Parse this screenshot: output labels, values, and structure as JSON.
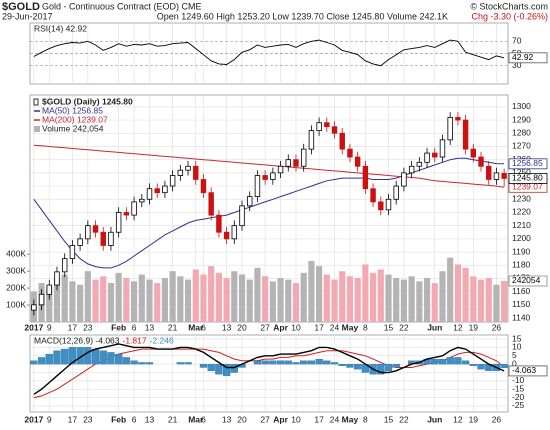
{
  "header": {
    "symbol": "$GOLD",
    "name": "Gold - Continuous Contract (EOD) CME",
    "copyright": "© StockCharts.com",
    "date": "29-Jun-2017",
    "quote": "Open 1249.60 High 1253.20 Low 1239.70 Close 1245.80 Volume 242.1K",
    "change": "Chg -3.30 (-0.26%)"
  },
  "chart_data": [
    {
      "type": "line",
      "label": "RSI(14) 42.92",
      "last_label": "42.92",
      "color": "#000000",
      "ylim": [
        0,
        100
      ],
      "yticks": [
        70,
        50,
        30
      ],
      "values": [
        45,
        52,
        58,
        63,
        66,
        68,
        67,
        70,
        64,
        55,
        60,
        66,
        62,
        65,
        64,
        66,
        62,
        63,
        66,
        67,
        68,
        58,
        48,
        38,
        33,
        32,
        40,
        52,
        56,
        64,
        60,
        62,
        64,
        65,
        60,
        66,
        70,
        72,
        68,
        64,
        55,
        52,
        48,
        38,
        33,
        30,
        40,
        48,
        56,
        58,
        60,
        63,
        60,
        66,
        72,
        70,
        52,
        48,
        44,
        40,
        46,
        42.92
      ]
    },
    {
      "type": "candlestick",
      "legend": "$GOLD (Daily) 1245.80",
      "close_label": "1245.80",
      "up_color": "#000000",
      "down_color": "#cc1111",
      "ylim": [
        1137,
        1309
      ],
      "yticks": [
        1140,
        1150,
        1160,
        1170,
        1180,
        1190,
        1200,
        1210,
        1220,
        1230,
        1240,
        1250,
        1260,
        1270,
        1280,
        1290,
        1300
      ],
      "categories": [
        "2017",
        null,
        "9",
        null,
        null,
        "17",
        null,
        "23",
        null,
        null,
        null,
        "Feb",
        null,
        "6",
        null,
        "13",
        null,
        null,
        "21",
        null,
        null,
        "Mar",
        "6",
        null,
        null,
        "13",
        null,
        "20",
        null,
        null,
        "27",
        null,
        "Apr",
        null,
        "10",
        null,
        null,
        "17",
        null,
        "24",
        null,
        "May",
        null,
        "8",
        null,
        null,
        "15",
        null,
        "22",
        null,
        null,
        null,
        "Jun",
        null,
        null,
        "12",
        null,
        "19",
        null,
        null,
        "26",
        null
      ],
      "open": [
        1146,
        1150,
        1158,
        1165,
        1175,
        1185,
        1195,
        1200,
        1210,
        1205,
        1195,
        1205,
        1220,
        1218,
        1228,
        1230,
        1238,
        1235,
        1240,
        1248,
        1252,
        1255,
        1245,
        1235,
        1218,
        1205,
        1200,
        1210,
        1225,
        1232,
        1248,
        1245,
        1250,
        1255,
        1260,
        1255,
        1268,
        1282,
        1288,
        1285,
        1280,
        1268,
        1262,
        1255,
        1238,
        1228,
        1222,
        1230,
        1240,
        1250,
        1255,
        1258,
        1265,
        1262,
        1275,
        1292,
        1290,
        1268,
        1262,
        1255,
        1245,
        1249.6
      ],
      "high": [
        1154,
        1162,
        1169,
        1179,
        1189,
        1199,
        1204,
        1214,
        1214,
        1209,
        1209,
        1224,
        1224,
        1232,
        1234,
        1242,
        1242,
        1244,
        1252,
        1256,
        1259,
        1259,
        1249,
        1239,
        1222,
        1209,
        1214,
        1229,
        1236,
        1252,
        1252,
        1254,
        1259,
        1264,
        1264,
        1272,
        1286,
        1292,
        1292,
        1289,
        1284,
        1272,
        1266,
        1259,
        1242,
        1232,
        1234,
        1244,
        1254,
        1259,
        1262,
        1269,
        1269,
        1279,
        1296,
        1296,
        1294,
        1272,
        1266,
        1259,
        1254,
        1253.2
      ],
      "low": [
        1142,
        1146,
        1154,
        1161,
        1171,
        1181,
        1191,
        1196,
        1201,
        1191,
        1191,
        1201,
        1214,
        1214,
        1224,
        1226,
        1231,
        1231,
        1236,
        1244,
        1248,
        1241,
        1231,
        1214,
        1201,
        1196,
        1196,
        1206,
        1221,
        1228,
        1241,
        1241,
        1246,
        1251,
        1251,
        1251,
        1264,
        1278,
        1281,
        1276,
        1264,
        1258,
        1251,
        1234,
        1224,
        1218,
        1218,
        1226,
        1236,
        1246,
        1251,
        1254,
        1258,
        1258,
        1271,
        1286,
        1264,
        1258,
        1251,
        1241,
        1241,
        1239.7
      ],
      "close": [
        1150,
        1158,
        1165,
        1175,
        1185,
        1195,
        1200,
        1210,
        1205,
        1195,
        1205,
        1220,
        1218,
        1228,
        1230,
        1238,
        1235,
        1240,
        1248,
        1252,
        1255,
        1245,
        1235,
        1218,
        1205,
        1200,
        1210,
        1225,
        1232,
        1248,
        1245,
        1250,
        1255,
        1260,
        1255,
        1268,
        1282,
        1288,
        1285,
        1280,
        1268,
        1262,
        1255,
        1238,
        1228,
        1222,
        1230,
        1240,
        1250,
        1255,
        1258,
        1265,
        1262,
        1275,
        1292,
        1290,
        1268,
        1262,
        1255,
        1245,
        1250,
        1245.8
      ],
      "series": [
        {
          "name": "MA(50) 1256.85",
          "last_label": "1256.85",
          "color": "#2c3390",
          "values": [
            1230,
            1222,
            1214,
            1206,
            1198,
            1191,
            1185,
            1181,
            1179,
            1178,
            1178,
            1180,
            1183,
            1187,
            1191,
            1195,
            1199,
            1203,
            1206,
            1209,
            1212,
            1214,
            1215,
            1216,
            1217,
            1218,
            1220,
            1222,
            1224,
            1226,
            1228,
            1230,
            1232,
            1234,
            1236,
            1238,
            1240,
            1242,
            1244,
            1245,
            1246,
            1246,
            1246,
            1246,
            1245,
            1245,
            1245,
            1246,
            1248,
            1250,
            1252,
            1254,
            1256,
            1258,
            1260,
            1261,
            1261,
            1260,
            1259,
            1258,
            1257,
            1256.85
          ]
        },
        {
          "name": "MA(200) 1239.07",
          "last_label": "1239.07",
          "color": "#c42a2f",
          "values": [
            1271,
            1270.5,
            1270,
            1269.5,
            1269,
            1268.5,
            1268,
            1267.5,
            1267,
            1266.5,
            1266,
            1265.5,
            1265,
            1264.5,
            1264,
            1263.5,
            1263,
            1262.5,
            1262,
            1261.5,
            1261,
            1260.5,
            1260,
            1259.5,
            1259,
            1258.5,
            1258,
            1257.5,
            1257,
            1256.5,
            1256,
            1255.5,
            1255,
            1254.5,
            1254,
            1253.5,
            1253,
            1252.5,
            1252,
            1251.5,
            1251,
            1250.5,
            1250,
            1249.5,
            1249,
            1248.5,
            1248,
            1247.5,
            1247,
            1246.5,
            1246,
            1245,
            1244,
            1243.5,
            1243,
            1242.5,
            1242,
            1241.5,
            1241,
            1240.5,
            1240,
            1239.07
          ]
        }
      ],
      "volume": {
        "name": "Volume 242,054",
        "last_label": "242054",
        "up_color": "#b4b4b4",
        "down_color": "#f2a9b2",
        "ylim": [
          0,
          1340000
        ],
        "yticks": [
          {
            "value": 100000,
            "label": "100K"
          },
          {
            "value": 200000,
            "label": "200K"
          },
          {
            "value": 300000,
            "label": "300K"
          },
          {
            "value": 400000,
            "label": "400K"
          }
        ],
        "values": [
          180000,
          230000,
          210000,
          260000,
          280000,
          240000,
          220000,
          300000,
          250000,
          270000,
          230000,
          290000,
          260000,
          240000,
          280000,
          250000,
          230000,
          260000,
          300000,
          270000,
          250000,
          310000,
          280000,
          330000,
          290000,
          260000,
          300000,
          280000,
          250000,
          320000,
          270000,
          240000,
          260000,
          250000,
          230000,
          290000,
          360000,
          330000,
          280000,
          250000,
          300000,
          270000,
          260000,
          340000,
          290000,
          310000,
          280000,
          260000,
          250000,
          270000,
          240000,
          260000,
          230000,
          300000,
          380000,
          340000,
          320000,
          270000,
          250000,
          260000,
          220000,
          242054
        ]
      }
    },
    {
      "type": "macd",
      "label": "MACD(12,26,9) -4.063",
      "last_label": "-4.063",
      "ylim": [
        -28.6,
        17.4
      ],
      "yticks": [
        15,
        10,
        5,
        0,
        -5,
        -10,
        -15,
        -20,
        -25
      ],
      "series": [
        {
          "name": "-1.817",
          "color": "#d02020",
          "kind": "line",
          "values": [
            -20,
            -19,
            -17,
            -15,
            -12,
            -9,
            -6,
            -3,
            0,
            2,
            4,
            6,
            7,
            8,
            9,
            9,
            9,
            9,
            9,
            9,
            9,
            9,
            9,
            8,
            7,
            5,
            3,
            2,
            2,
            2,
            3,
            3,
            4,
            4,
            5,
            5,
            6,
            7,
            8,
            8,
            8,
            7,
            6,
            5,
            3,
            1,
            -1,
            -2,
            -2,
            -2,
            -1,
            0,
            1,
            2,
            4,
            6,
            7,
            7,
            6,
            4,
            2,
            -1.817
          ]
        },
        {
          "name": "-2.246",
          "color": "#3d8fc6",
          "kind": "histogram",
          "values": [
            2,
            4,
            6,
            8,
            9,
            10,
            10,
            10,
            9,
            8,
            7,
            6,
            4,
            2,
            1,
            1,
            0,
            0,
            0,
            1,
            1,
            0,
            -2,
            -4,
            -6,
            -7,
            -5,
            -2,
            0,
            2,
            2,
            2,
            2,
            2,
            1,
            2,
            2,
            3,
            2,
            1,
            -1,
            -2,
            -3,
            -5,
            -6,
            -6,
            -4,
            -2,
            0,
            2,
            2,
            3,
            3,
            3,
            4,
            4,
            2,
            -1,
            -3,
            -4,
            -4,
            -2.246
          ]
        },
        {
          "name": "MACD(12,26,9)",
          "color": "#000000",
          "kind": "line",
          "width": 1.4,
          "values": [
            -18,
            -15,
            -11,
            -7,
            -3,
            1,
            4,
            7,
            9,
            10,
            11,
            12,
            11,
            10,
            10,
            10,
            9,
            9,
            9,
            10,
            10,
            9,
            7,
            4,
            1,
            -2,
            -2,
            0,
            2,
            4,
            5,
            5,
            6,
            6,
            6,
            7,
            8,
            10,
            10,
            9,
            7,
            5,
            3,
            0,
            -3,
            -5,
            -5,
            -4,
            -2,
            0,
            1,
            3,
            4,
            5,
            8,
            10,
            9,
            6,
            3,
            0,
            -2,
            -4.063
          ]
        }
      ]
    }
  ]
}
